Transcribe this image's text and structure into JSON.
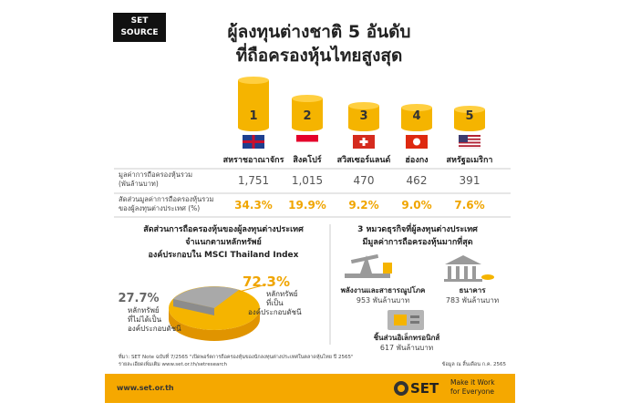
{
  "header": {
    "logo": [
      "SET",
      "SOURCE"
    ],
    "title": [
      "ผู้ลงทุนต่างชาติ 5 อันดับ",
      "ที่ถือครองหุ้นไทยสูงสุด"
    ]
  },
  "table": {
    "row_labels": [
      [
        "มูลค่าการถือครองหุ้นรวม",
        "(พันล้านบาท)"
      ],
      [
        "สัดส่วนมูลค่าการถือครองหุ้นรวม",
        "ของผู้ลงทุนต่างประเทศ (%)"
      ]
    ],
    "columns": [
      {
        "rank": "1",
        "country": "สหราชอาณาจักร",
        "value": "1,751",
        "share": "34.3%"
      },
      {
        "rank": "2",
        "country": "สิงคโปร์",
        "value": "1,015",
        "share": "19.9%"
      },
      {
        "rank": "3",
        "country": "สวิสเซอร์แลนด์",
        "value": "470",
        "share": "9.2%"
      },
      {
        "rank": "4",
        "country": "ฮ่องกง",
        "value": "462",
        "share": "9.0%"
      },
      {
        "rank": "5",
        "country": "สหรัฐอเมริกา",
        "value": "391",
        "share": "7.6%"
      }
    ]
  },
  "left_panel": {
    "heading": [
      "สัดส่วนการถือครองหุ้นของผู้ลงทุนต่างประเทศ",
      "จำแนกตามหลักทรัพย์",
      "องค์ประกอบใน MSCI Thailand Index"
    ],
    "index_share": "72.3%",
    "index_label": [
      "หลักทรัพย์",
      "ที่เป็น",
      "องค์ประกอบดัชนี"
    ],
    "non_index_share": "27.7%",
    "non_index_label": [
      "หลักทรัพย์",
      "ที่ไม่ได้เป็น",
      "องค์ประกอบดัชนี"
    ]
  },
  "right_panel": {
    "heading": [
      "3 หมวดธุรกิจที่ผู้ลงทุนต่างประเทศ",
      "มีมูลค่าการถือครองหุ้นมากที่สุด"
    ],
    "sectors": [
      {
        "name": "พลังงานและสาธารณูปโภค",
        "value": "953 พันล้านบาท"
      },
      {
        "name": "ธนาคาร",
        "value": "783 พันล้านบาท"
      },
      {
        "name": "ชิ้นส่วนอิเล็กทรอนิกส์",
        "value": "617 พันล้านบาท"
      }
    ]
  },
  "footnotes": [
    "ที่มา: SET Note ฉบับที่ 7/2565 \"เปิดพอร์ตการถือครองหุ้นของนักลงทุนต่างประเทศในตลาดหุ้นไทย ปี 2565\"",
    "รายละเอียดเพิ่มเติม www.set.or.th/setresearch"
  ],
  "data_date": "ข้อมูล ณ สิ้นเดือน ก.ค. 2565",
  "footer": {
    "url": "www.set.or.th",
    "brand": "SET",
    "slogan": [
      "Make it Work",
      "for Everyone"
    ]
  }
}
